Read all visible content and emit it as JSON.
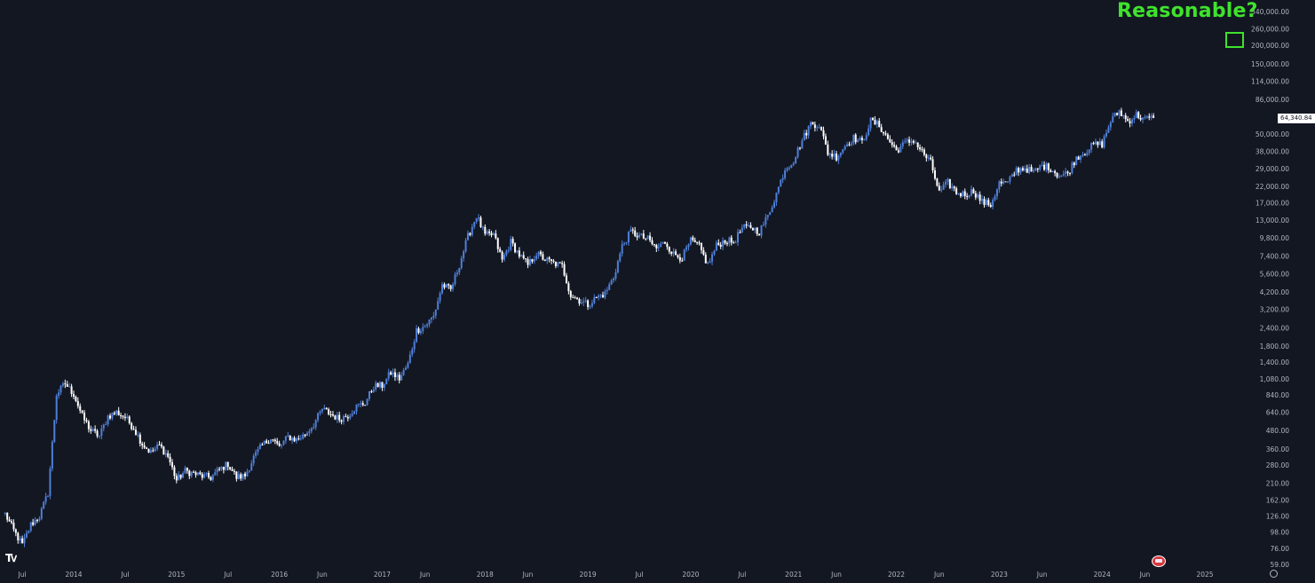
{
  "chart_data": {
    "type": "candlestick",
    "scale": "log",
    "grid": false,
    "colors": {
      "background": "#131722",
      "up": "#4f7fd8",
      "down": "#ffffff",
      "axis_text": "#b2b5be",
      "annotation": "#3fe32c"
    },
    "last_price": 64340.84,
    "last_price_label": "64,340.84",
    "annotation": "Reasonable?",
    "y_ticks": [
      {
        "value": 340000,
        "label": "340,000.00"
      },
      {
        "value": 260000,
        "label": "260,000.00"
      },
      {
        "value": 200000,
        "label": "200,000.00"
      },
      {
        "value": 150000,
        "label": "150,000.00"
      },
      {
        "value": 114000,
        "label": "114,000.00"
      },
      {
        "value": 86000,
        "label": "86,000.00"
      },
      {
        "value": 50000,
        "label": "50,000.00"
      },
      {
        "value": 38000,
        "label": "38,000.00"
      },
      {
        "value": 29000,
        "label": "29,000.00"
      },
      {
        "value": 22000,
        "label": "22,000.00"
      },
      {
        "value": 17000,
        "label": "17,000.00"
      },
      {
        "value": 13000,
        "label": "13,000.00"
      },
      {
        "value": 9800,
        "label": "9,800.00"
      },
      {
        "value": 7400,
        "label": "7,400.00"
      },
      {
        "value": 5600,
        "label": "5,600.00"
      },
      {
        "value": 4200,
        "label": "4,200.00"
      },
      {
        "value": 3200,
        "label": "3,200.00"
      },
      {
        "value": 2400,
        "label": "2,400.00"
      },
      {
        "value": 1800,
        "label": "1,800.00"
      },
      {
        "value": 1400,
        "label": "1,400.00"
      },
      {
        "value": 1080,
        "label": "1,080.00"
      },
      {
        "value": 840,
        "label": "840.00"
      },
      {
        "value": 640,
        "label": "640.00"
      },
      {
        "value": 480,
        "label": "480.00"
      },
      {
        "value": 360,
        "label": "360.00"
      },
      {
        "value": 280,
        "label": "280.00"
      },
      {
        "value": 210,
        "label": "210.00"
      },
      {
        "value": 162,
        "label": "162.00"
      },
      {
        "value": 126,
        "label": "126.00"
      },
      {
        "value": 98,
        "label": "98.00"
      },
      {
        "value": 76,
        "label": "76.00"
      },
      {
        "value": 59,
        "label": "59.00"
      }
    ],
    "x_ticks": [
      {
        "date": "2013-07",
        "label": "Jul"
      },
      {
        "date": "2014-01",
        "label": "2014"
      },
      {
        "date": "2014-07",
        "label": "Jul"
      },
      {
        "date": "2015-01",
        "label": "2015"
      },
      {
        "date": "2015-07",
        "label": "Jul"
      },
      {
        "date": "2016-01",
        "label": "2016"
      },
      {
        "date": "2016-06",
        "label": "Jun"
      },
      {
        "date": "2017-01",
        "label": "2017"
      },
      {
        "date": "2017-06",
        "label": "Jun"
      },
      {
        "date": "2018-01",
        "label": "2018"
      },
      {
        "date": "2018-06",
        "label": "Jun"
      },
      {
        "date": "2019-01",
        "label": "2019"
      },
      {
        "date": "2019-07",
        "label": "Jul"
      },
      {
        "date": "2020-01",
        "label": "2020"
      },
      {
        "date": "2020-07",
        "label": "Jul"
      },
      {
        "date": "2021-01",
        "label": "2021"
      },
      {
        "date": "2021-06",
        "label": "Jun"
      },
      {
        "date": "2022-01",
        "label": "2022"
      },
      {
        "date": "2022-06",
        "label": "Jun"
      },
      {
        "date": "2023-01",
        "label": "2023"
      },
      {
        "date": "2023-06",
        "label": "Jun"
      },
      {
        "date": "2024-01",
        "label": "2024"
      },
      {
        "date": "2024-06",
        "label": "Jun"
      },
      {
        "date": "2025-01",
        "label": "2025"
      }
    ],
    "series": [
      {
        "date": "2013-05",
        "close": 130
      },
      {
        "date": "2013-06",
        "close": 100
      },
      {
        "date": "2013-07",
        "close": 80
      },
      {
        "date": "2013-08",
        "close": 110
      },
      {
        "date": "2013-09",
        "close": 125
      },
      {
        "date": "2013-10",
        "close": 180
      },
      {
        "date": "2013-11",
        "close": 850
      },
      {
        "date": "2013-12",
        "close": 1000
      },
      {
        "date": "2014-01",
        "close": 850
      },
      {
        "date": "2014-02",
        "close": 600
      },
      {
        "date": "2014-03",
        "close": 480
      },
      {
        "date": "2014-04",
        "close": 440
      },
      {
        "date": "2014-05",
        "close": 600
      },
      {
        "date": "2014-06",
        "close": 640
      },
      {
        "date": "2014-07",
        "close": 590
      },
      {
        "date": "2014-08",
        "close": 500
      },
      {
        "date": "2014-09",
        "close": 390
      },
      {
        "date": "2014-10",
        "close": 340
      },
      {
        "date": "2014-11",
        "close": 380
      },
      {
        "date": "2014-12",
        "close": 320
      },
      {
        "date": "2015-01",
        "close": 220
      },
      {
        "date": "2015-02",
        "close": 255
      },
      {
        "date": "2015-03",
        "close": 245
      },
      {
        "date": "2015-04",
        "close": 235
      },
      {
        "date": "2015-05",
        "close": 230
      },
      {
        "date": "2015-06",
        "close": 260
      },
      {
        "date": "2015-07",
        "close": 285
      },
      {
        "date": "2015-08",
        "close": 230
      },
      {
        "date": "2015-09",
        "close": 237
      },
      {
        "date": "2015-10",
        "close": 315
      },
      {
        "date": "2015-11",
        "close": 380
      },
      {
        "date": "2015-12",
        "close": 430
      },
      {
        "date": "2016-01",
        "close": 370
      },
      {
        "date": "2016-02",
        "close": 435
      },
      {
        "date": "2016-03",
        "close": 415
      },
      {
        "date": "2016-04",
        "close": 450
      },
      {
        "date": "2016-05",
        "close": 530
      },
      {
        "date": "2016-06",
        "close": 670
      },
      {
        "date": "2016-07",
        "close": 620
      },
      {
        "date": "2016-08",
        "close": 575
      },
      {
        "date": "2016-09",
        "close": 610
      },
      {
        "date": "2016-10",
        "close": 700
      },
      {
        "date": "2016-11",
        "close": 740
      },
      {
        "date": "2016-12",
        "close": 960
      },
      {
        "date": "2017-01",
        "close": 970
      },
      {
        "date": "2017-02",
        "close": 1190
      },
      {
        "date": "2017-03",
        "close": 1080
      },
      {
        "date": "2017-04",
        "close": 1350
      },
      {
        "date": "2017-05",
        "close": 2300
      },
      {
        "date": "2017-06",
        "close": 2480
      },
      {
        "date": "2017-07",
        "close": 2875
      },
      {
        "date": "2017-08",
        "close": 4700
      },
      {
        "date": "2017-09",
        "close": 4340
      },
      {
        "date": "2017-10",
        "close": 6470
      },
      {
        "date": "2017-11",
        "close": 10000
      },
      {
        "date": "2017-12",
        "close": 13900
      },
      {
        "date": "2018-01",
        "close": 10200
      },
      {
        "date": "2018-02",
        "close": 10300
      },
      {
        "date": "2018-03",
        "close": 6900
      },
      {
        "date": "2018-04",
        "close": 9200
      },
      {
        "date": "2018-05",
        "close": 7500
      },
      {
        "date": "2018-06",
        "close": 6400
      },
      {
        "date": "2018-07",
        "close": 7700
      },
      {
        "date": "2018-08",
        "close": 7000
      },
      {
        "date": "2018-09",
        "close": 6600
      },
      {
        "date": "2018-10",
        "close": 6300
      },
      {
        "date": "2018-11",
        "close": 4000
      },
      {
        "date": "2018-12",
        "close": 3700
      },
      {
        "date": "2019-01",
        "close": 3450
      },
      {
        "date": "2019-02",
        "close": 3850
      },
      {
        "date": "2019-03",
        "close": 4100
      },
      {
        "date": "2019-04",
        "close": 5300
      },
      {
        "date": "2019-05",
        "close": 8600
      },
      {
        "date": "2019-06",
        "close": 10800
      },
      {
        "date": "2019-07",
        "close": 10100
      },
      {
        "date": "2019-08",
        "close": 9600
      },
      {
        "date": "2019-09",
        "close": 8300
      },
      {
        "date": "2019-10",
        "close": 9200
      },
      {
        "date": "2019-11",
        "close": 7600
      },
      {
        "date": "2019-12",
        "close": 7200
      },
      {
        "date": "2020-01",
        "close": 9350
      },
      {
        "date": "2020-02",
        "close": 8550
      },
      {
        "date": "2020-03",
        "close": 6400
      },
      {
        "date": "2020-04",
        "close": 8650
      },
      {
        "date": "2020-05",
        "close": 9450
      },
      {
        "date": "2020-06",
        "close": 9150
      },
      {
        "date": "2020-07",
        "close": 11350
      },
      {
        "date": "2020-08",
        "close": 11650
      },
      {
        "date": "2020-09",
        "close": 10780
      },
      {
        "date": "2020-10",
        "close": 13800
      },
      {
        "date": "2020-11",
        "close": 19700
      },
      {
        "date": "2020-12",
        "close": 29000
      },
      {
        "date": "2021-01",
        "close": 33100
      },
      {
        "date": "2021-02",
        "close": 45200
      },
      {
        "date": "2021-03",
        "close": 58800
      },
      {
        "date": "2021-04",
        "close": 57700
      },
      {
        "date": "2021-05",
        "close": 37300
      },
      {
        "date": "2021-06",
        "close": 35000
      },
      {
        "date": "2021-07",
        "close": 41500
      },
      {
        "date": "2021-08",
        "close": 47100
      },
      {
        "date": "2021-09",
        "close": 43800
      },
      {
        "date": "2021-10",
        "close": 61300
      },
      {
        "date": "2021-11",
        "close": 57000
      },
      {
        "date": "2021-12",
        "close": 46200
      },
      {
        "date": "2022-01",
        "close": 38500
      },
      {
        "date": "2022-02",
        "close": 43200
      },
      {
        "date": "2022-03",
        "close": 45500
      },
      {
        "date": "2022-04",
        "close": 37700
      },
      {
        "date": "2022-05",
        "close": 31800
      },
      {
        "date": "2022-06",
        "close": 19900
      },
      {
        "date": "2022-07",
        "close": 23300
      },
      {
        "date": "2022-08",
        "close": 20000
      },
      {
        "date": "2022-09",
        "close": 19400
      },
      {
        "date": "2022-10",
        "close": 20500
      },
      {
        "date": "2022-11",
        "close": 17200
      },
      {
        "date": "2022-12",
        "close": 16500
      },
      {
        "date": "2023-01",
        "close": 23100
      },
      {
        "date": "2023-02",
        "close": 23100
      },
      {
        "date": "2023-03",
        "close": 28500
      },
      {
        "date": "2023-04",
        "close": 29300
      },
      {
        "date": "2023-05",
        "close": 27200
      },
      {
        "date": "2023-06",
        "close": 30500
      },
      {
        "date": "2023-07",
        "close": 29200
      },
      {
        "date": "2023-08",
        "close": 25900
      },
      {
        "date": "2023-09",
        "close": 27000
      },
      {
        "date": "2023-10",
        "close": 34600
      },
      {
        "date": "2023-11",
        "close": 37700
      },
      {
        "date": "2023-12",
        "close": 42300
      },
      {
        "date": "2024-01",
        "close": 42600
      },
      {
        "date": "2024-02",
        "close": 61200
      },
      {
        "date": "2024-03",
        "close": 71300
      },
      {
        "date": "2024-04",
        "close": 60700
      },
      {
        "date": "2024-05",
        "close": 67500
      },
      {
        "date": "2024-06",
        "close": 62700
      },
      {
        "date": "2024-07",
        "close": 64340
      }
    ]
  }
}
